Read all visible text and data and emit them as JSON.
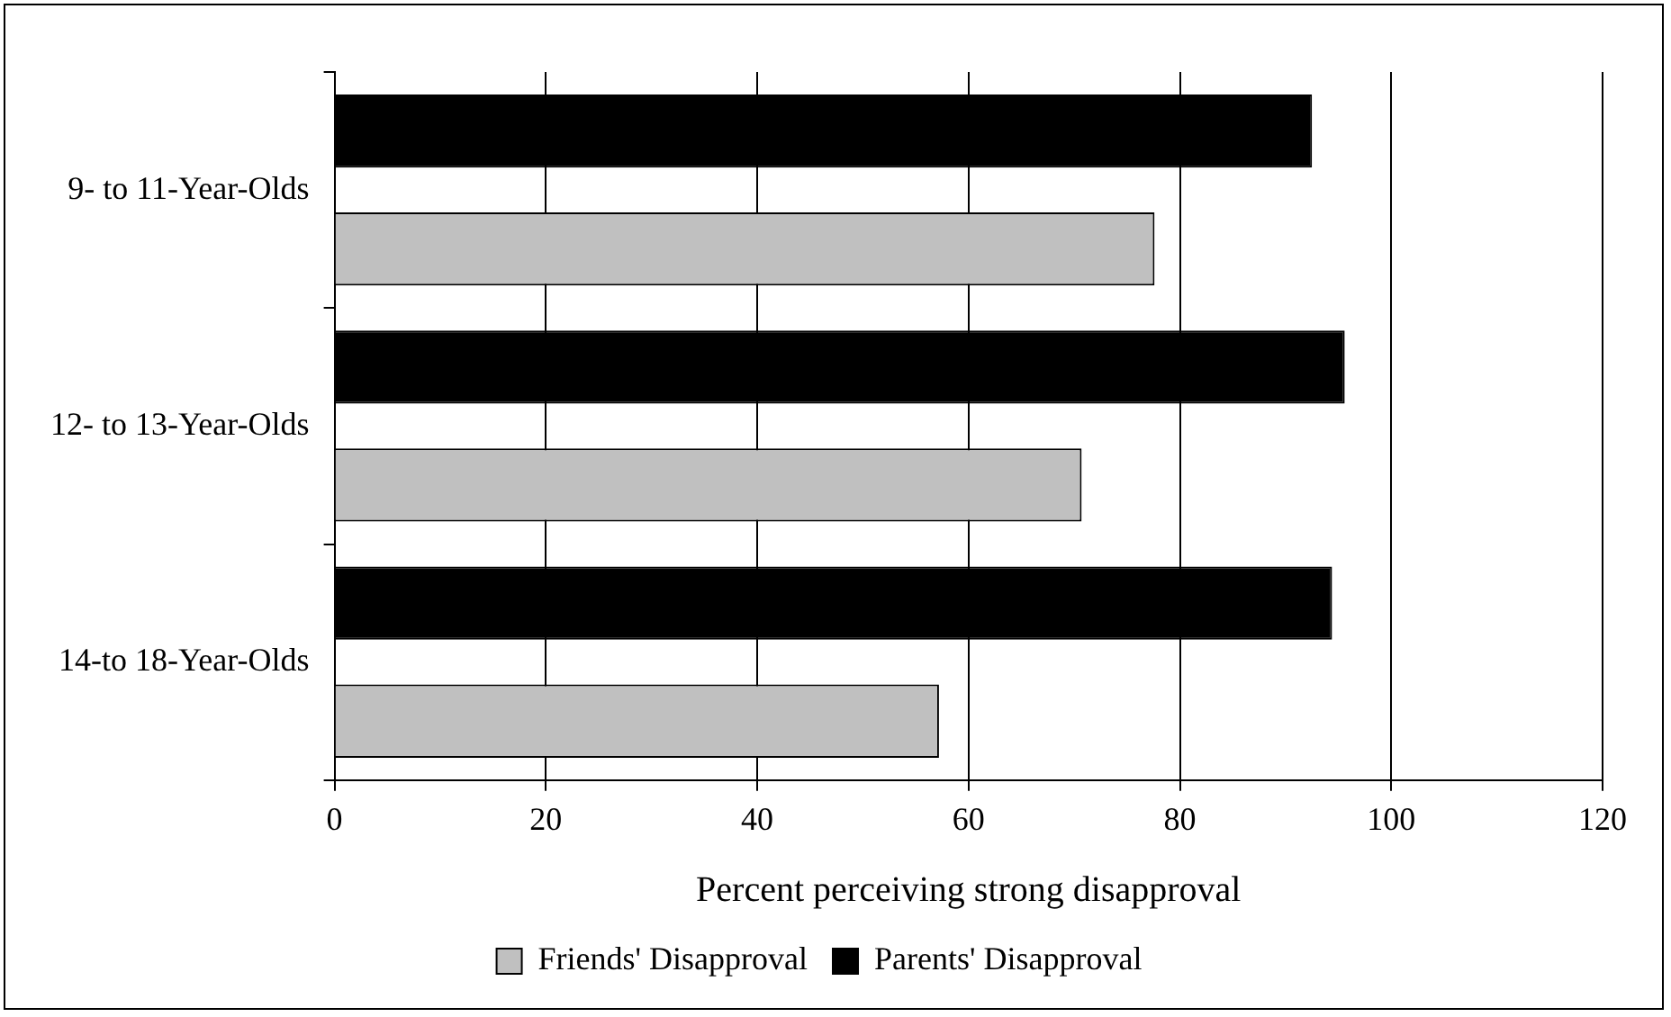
{
  "chart_data": {
    "type": "bar",
    "orientation": "horizontal",
    "xlabel": "Percent perceiving strong disapproval",
    "categories": [
      "9- to 11-Year-Olds",
      "12- to 13-Year-Olds",
      "14-to 18-Year-Olds"
    ],
    "series": [
      {
        "name": "Friends' Disapproval",
        "color": "#c0c0c0",
        "values": [
          77.6,
          70.7,
          57.2
        ]
      },
      {
        "name": "Parents' Disapproval",
        "color": "#000000",
        "values": [
          92.5,
          95.6,
          94.4
        ]
      }
    ],
    "xlim": [
      0,
      120
    ],
    "xticks": [
      0,
      20,
      40,
      60,
      80,
      100,
      120
    ],
    "grid": "x",
    "legend": "bottom"
  }
}
